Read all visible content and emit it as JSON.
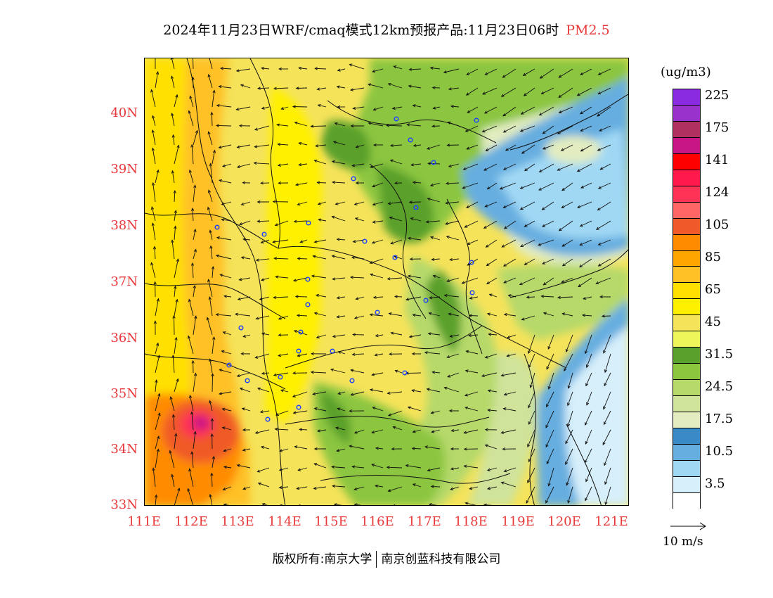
{
  "title": {
    "main": "2024年11月23日WRF/cmaq模式12km预报产品:11月23日06时",
    "variable": "PM2.5"
  },
  "map": {
    "lat_labels": [
      "40N",
      "39N",
      "38N",
      "37N",
      "36N",
      "35N",
      "34N",
      "33N"
    ],
    "lon_labels": [
      "111E",
      "112E",
      "113E",
      "114E",
      "115E",
      "116E",
      "117E",
      "118E",
      "119E",
      "120E",
      "121E"
    ],
    "lon_range": [
      111,
      121.4
    ],
    "lat_range": [
      33,
      41
    ]
  },
  "legend": {
    "unit": "(ug/m3)",
    "bins": [
      {
        "color": "#8a2be2",
        "label": "225"
      },
      {
        "color": "#9932cc",
        "label": ""
      },
      {
        "color": "#b03060",
        "label": "175"
      },
      {
        "color": "#c71585",
        "label": ""
      },
      {
        "color": "#ff0000",
        "label": "141"
      },
      {
        "color": "#ff1a4b",
        "label": ""
      },
      {
        "color": "#ff3355",
        "label": "124"
      },
      {
        "color": "#ff6666",
        "label": ""
      },
      {
        "color": "#f05a28",
        "label": "105"
      },
      {
        "color": "#ff8c00",
        "label": ""
      },
      {
        "color": "#ffa500",
        "label": "85"
      },
      {
        "color": "#ffc125",
        "label": ""
      },
      {
        "color": "#ffe000",
        "label": "65"
      },
      {
        "color": "#fff000",
        "label": ""
      },
      {
        "color": "#f5e35a",
        "label": "45"
      },
      {
        "color": "#eef55a",
        "label": ""
      },
      {
        "color": "#5aa02c",
        "label": "31.5"
      },
      {
        "color": "#8cc63f",
        "label": ""
      },
      {
        "color": "#b6d96a",
        "label": "24.5"
      },
      {
        "color": "#cfe39a",
        "label": ""
      },
      {
        "color": "#e2ecc0",
        "label": "17.5"
      },
      {
        "color": "#3a8ac8",
        "label": ""
      },
      {
        "color": "#66aee0",
        "label": "10.5"
      },
      {
        "color": "#a0d8f4",
        "label": ""
      },
      {
        "color": "#d6effa",
        "label": "3.5"
      },
      {
        "color": "#ffffff",
        "label": ""
      }
    ]
  },
  "wind_reference": {
    "label": "10 m/s"
  },
  "footer": {
    "copyright": "版权所有:南京大学",
    "company": "南京创蓝科技有限公司"
  },
  "cities_icon": "circle-marker-icon",
  "colors": {
    "axis_label": "#e8383a",
    "city_marker": "#2244ff"
  }
}
